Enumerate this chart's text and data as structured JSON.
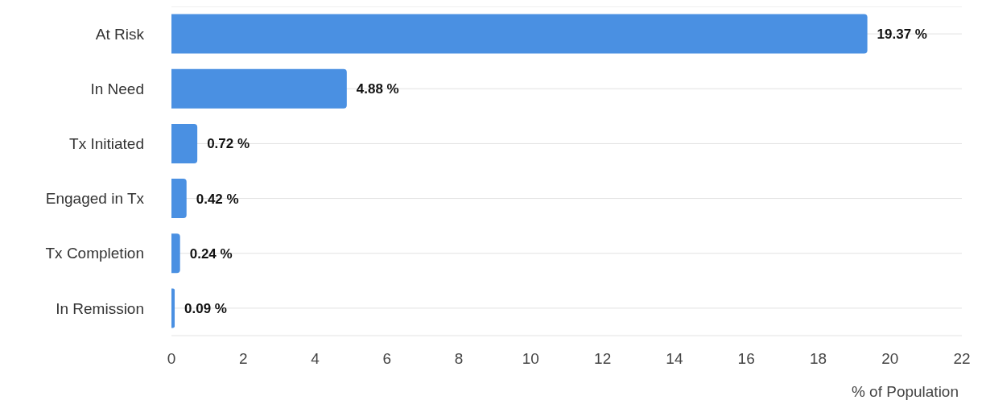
{
  "chart_data": {
    "type": "bar",
    "orientation": "horizontal",
    "categories": [
      "At Risk",
      "In Need",
      "Tx Initiated",
      "Engaged in Tx",
      "Tx Completion",
      "In Remission"
    ],
    "values": [
      19.37,
      4.88,
      0.72,
      0.42,
      0.24,
      0.09
    ],
    "value_labels": [
      "19.37 %",
      "4.88 %",
      "0.72 %",
      "0.42 %",
      "0.24 %",
      "0.09 %"
    ],
    "color": "#4a90e2",
    "xlabel": "% of Population",
    "xlim": [
      0,
      22
    ],
    "xticks": [
      0,
      2,
      4,
      6,
      8,
      10,
      12,
      14,
      16,
      18,
      20,
      22
    ],
    "grid": "y"
  }
}
